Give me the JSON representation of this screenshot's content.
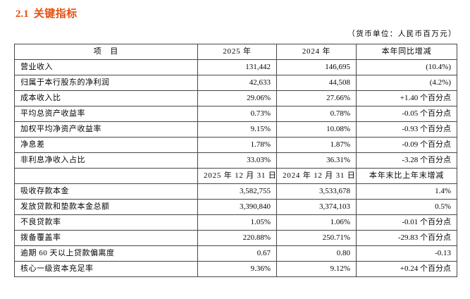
{
  "title_number": "2.1",
  "title_text": "关键指标",
  "unit_note": "（货币单位：人民币百万元）",
  "colors": {
    "title_accent": "#E8500F",
    "table_border": "#474747",
    "text": "#060606",
    "background": "#ffffff"
  },
  "table": {
    "header": [
      "项　目",
      "2025 年",
      "2024 年",
      "本年同比增减"
    ],
    "rows_yoy": [
      {
        "label": "营业收入",
        "y2025": "131,442",
        "y2024": "146,695",
        "change": "(10.4%)"
      },
      {
        "label": "归属于本行股东的净利润",
        "y2025": "42,633",
        "y2024": "44,508",
        "change": "(4.2%)"
      },
      {
        "label": "成本收入比",
        "y2025": "29.06%",
        "y2024": "27.66%",
        "change": "+1.40 个百分点"
      },
      {
        "label": "平均总资产收益率",
        "y2025": "0.73%",
        "y2024": "0.78%",
        "change": "-0.05 个百分点"
      },
      {
        "label": "加权平均净资产收益率",
        "y2025": "9.15%",
        "y2024": "10.08%",
        "change": "-0.93 个百分点"
      },
      {
        "label": "净息差",
        "y2025": "1.78%",
        "y2024": "1.87%",
        "change": "-0.09 个百分点"
      },
      {
        "label": "非利息净收入占比",
        "y2025": "33.03%",
        "y2024": "36.31%",
        "change": "-3.28 个百分点"
      }
    ],
    "subheader": [
      "",
      "2025 年 12 月 31 日",
      "2024 年 12 月 31 日",
      "本年末比上年末增减"
    ],
    "rows_eoy": [
      {
        "label": "吸收存款本金",
        "y2025": "3,582,755",
        "y2024": "3,533,678",
        "change": "1.4%"
      },
      {
        "label": "发放贷款和垫款本金总额",
        "y2025": "3,390,840",
        "y2024": "3,374,103",
        "change": "0.5%"
      },
      {
        "label": "不良贷款率",
        "y2025": "1.05%",
        "y2024": "1.06%",
        "change": "-0.01 个百分点"
      },
      {
        "label": "拨备覆盖率",
        "y2025": "220.88%",
        "y2024": "250.71%",
        "change": "-29.83 个百分点"
      },
      {
        "label": "逾期 60 天以上贷款偏离度",
        "y2025": "0.67",
        "y2024": "0.80",
        "change": "-0.13"
      },
      {
        "label": "核心一级资本充足率",
        "y2025": "9.36%",
        "y2024": "9.12%",
        "change": "+0.24 个百分点"
      }
    ]
  }
}
